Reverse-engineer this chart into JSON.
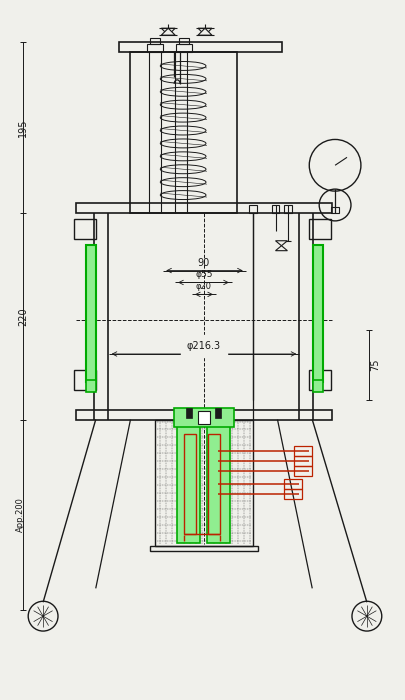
{
  "bg_color": "#f0f0eb",
  "line_color": "#1a1a1a",
  "green_color": "#00aa00",
  "green_fill": "#90ee90",
  "red_color": "#bb2200",
  "dim_195": "195",
  "dim_220": "220",
  "dim_app200": "App.200",
  "dim_phi216": "φ216.3",
  "dim_90": "90",
  "dim_phi55": "φ55",
  "dim_phi20": "φ20",
  "dim_75": "75"
}
